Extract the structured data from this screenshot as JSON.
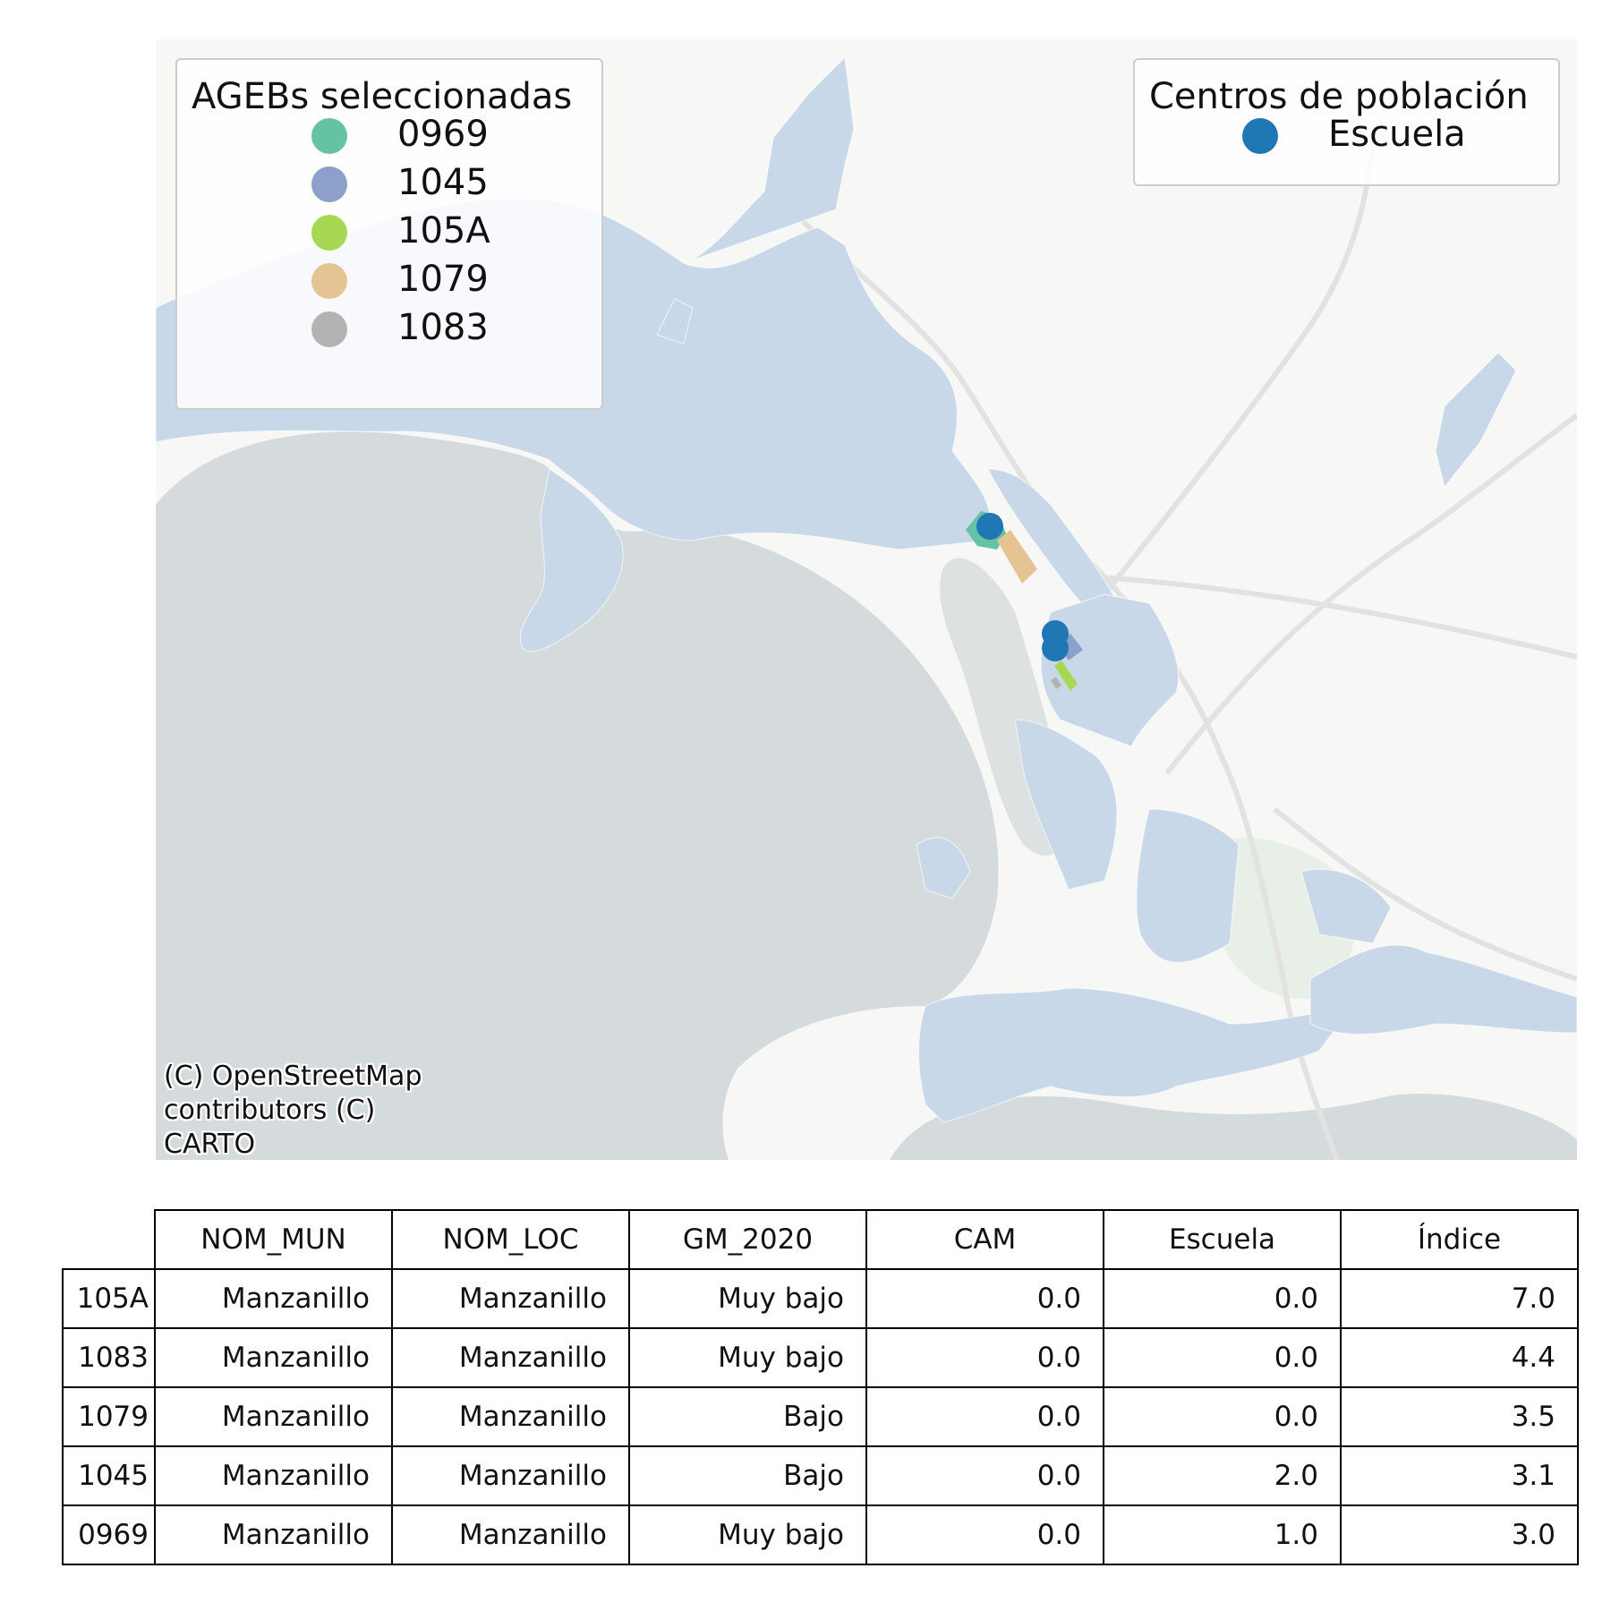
{
  "map": {
    "attribution": "(C) OpenStreetMap\ncontributors (C)\nCARTO",
    "colors": {
      "ocean": "#d5dadc",
      "land": "#f7f7f6",
      "urban": "#c8d8e9",
      "park": "#e8efe6",
      "road": "#e4e4e4",
      "school": "#1f77b4"
    },
    "selected_agebs": [
      {
        "id": "0969",
        "color": "#66c2a5"
      },
      {
        "id": "1045",
        "color": "#8da0cb"
      },
      {
        "id": "105A",
        "color": "#a6d854"
      },
      {
        "id": "1079",
        "color": "#e5c494"
      },
      {
        "id": "1083",
        "color": "#b3b3b3"
      }
    ]
  },
  "legend_agebs": {
    "title": "AGEBs seleccionadas",
    "items": [
      "0969",
      "1045",
      "105A",
      "1079",
      "1083"
    ],
    "colors": [
      "#66c2a5",
      "#8da0cb",
      "#a6d854",
      "#e5c494",
      "#b3b3b3"
    ]
  },
  "legend_centros": {
    "title": "Centros de población",
    "items": [
      "Escuela"
    ],
    "colors": [
      "#1f77b4"
    ]
  },
  "table": {
    "columns": [
      "NOM_MUN",
      "NOM_LOC",
      "GM_2020",
      "CAM",
      "Escuela",
      "Índice"
    ],
    "rows": [
      {
        "index": "105A",
        "cells": [
          "Manzanillo",
          "Manzanillo",
          "Muy bajo",
          "0.0",
          "0.0",
          "7.0"
        ]
      },
      {
        "index": "1083",
        "cells": [
          "Manzanillo",
          "Manzanillo",
          "Muy bajo",
          "0.0",
          "0.0",
          "4.4"
        ]
      },
      {
        "index": "1079",
        "cells": [
          "Manzanillo",
          "Manzanillo",
          "Bajo",
          "0.0",
          "0.0",
          "3.5"
        ]
      },
      {
        "index": "1045",
        "cells": [
          "Manzanillo",
          "Manzanillo",
          "Bajo",
          "0.0",
          "2.0",
          "3.1"
        ]
      },
      {
        "index": "0969",
        "cells": [
          "Manzanillo",
          "Manzanillo",
          "Muy bajo",
          "0.0",
          "1.0",
          "3.0"
        ]
      }
    ]
  }
}
